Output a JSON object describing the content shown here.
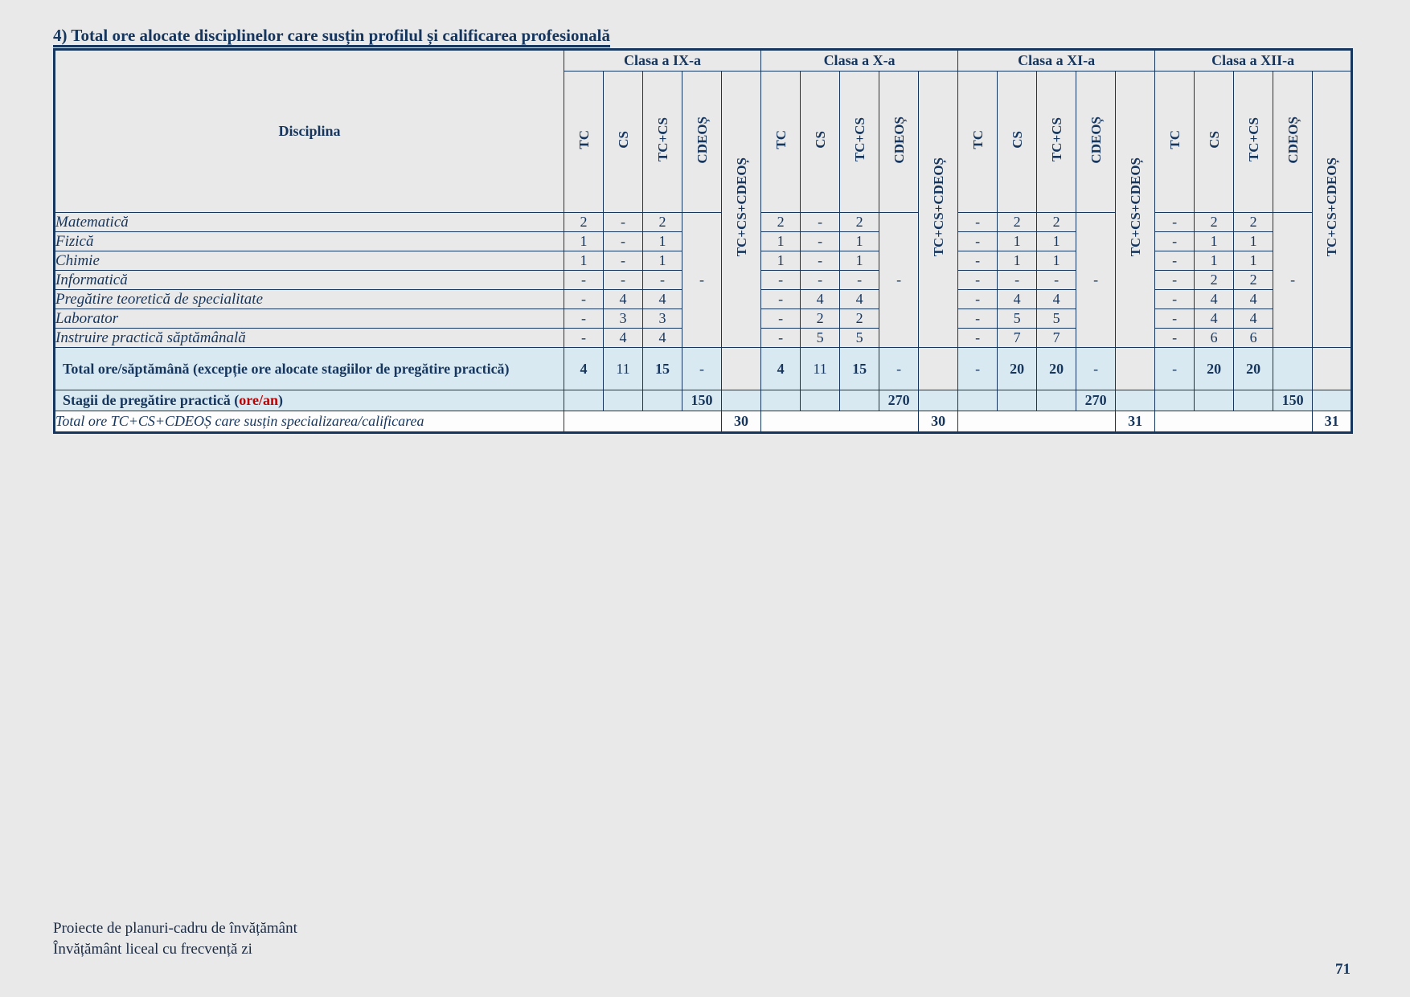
{
  "page": {
    "title": "4) Total ore alocate disciplinelor care susțin profilul și calificarea profesională",
    "footer_line1": "Proiecte de planuri-cadru de învățământ",
    "footer_line2": "Învățământ liceal cu frecvență zi",
    "page_number": "71"
  },
  "colors": {
    "navy": "#17365d",
    "red_accent": "#c00000",
    "summary_row_blue": "#d8e9f2",
    "page_background": "#e9e9e9",
    "final_row_white": "#fdfdfd"
  },
  "table": {
    "disciplina_header": "Disciplina",
    "class_headers": [
      "Clasa a IX-a",
      "Clasa a X-a",
      "Clasa a XI-a",
      "Clasa a XII-a"
    ],
    "sub_headers": [
      "TC",
      "CS",
      "TC+CS",
      "CDEOȘ",
      "TC+CS+CDEOȘ"
    ],
    "cdeos_merged_value": "-",
    "disciplines": [
      {
        "label": "Matematică",
        "values": [
          [
            "2",
            "-",
            "2"
          ],
          [
            "2",
            "-",
            "2"
          ],
          [
            "-",
            "2",
            "2"
          ],
          [
            "-",
            "2",
            "2"
          ]
        ]
      },
      {
        "label": "Fizică",
        "values": [
          [
            "1",
            "-",
            "1"
          ],
          [
            "1",
            "-",
            "1"
          ],
          [
            "-",
            "1",
            "1"
          ],
          [
            "-",
            "1",
            "1"
          ]
        ]
      },
      {
        "label": "Chimie",
        "values": [
          [
            "1",
            "-",
            "1"
          ],
          [
            "1",
            "-",
            "1"
          ],
          [
            "-",
            "1",
            "1"
          ],
          [
            "-",
            "1",
            "1"
          ]
        ]
      },
      {
        "label": "Informatică",
        "values": [
          [
            "-",
            "-",
            "-"
          ],
          [
            "-",
            "-",
            "-"
          ],
          [
            "-",
            "-",
            "-"
          ],
          [
            "-",
            "2",
            "2"
          ]
        ]
      },
      {
        "label": "Pregătire teoretică de specialitate",
        "values": [
          [
            "-",
            "4",
            "4"
          ],
          [
            "-",
            "4",
            "4"
          ],
          [
            "-",
            "4",
            "4"
          ],
          [
            "-",
            "4",
            "4"
          ]
        ]
      },
      {
        "label": "Laborator",
        "values": [
          [
            "-",
            "3",
            "3"
          ],
          [
            "-",
            "2",
            "2"
          ],
          [
            "-",
            "5",
            "5"
          ],
          [
            "-",
            "4",
            "4"
          ]
        ]
      },
      {
        "label": "Instruire practică săptămânală",
        "values": [
          [
            "-",
            "4",
            "4"
          ],
          [
            "-",
            "5",
            "5"
          ],
          [
            "-",
            "7",
            "7"
          ],
          [
            "-",
            "6",
            "6"
          ]
        ]
      }
    ],
    "total_row": {
      "label": "Total ore/săptămână (excepție ore alocate stagiilor de pregătire practică)",
      "values": [
        [
          "4",
          "11",
          "15",
          "-"
        ],
        [
          "4",
          "11",
          "15",
          "-"
        ],
        [
          "-",
          "20",
          "20",
          "-"
        ],
        [
          "-",
          "20",
          "20",
          ""
        ]
      ]
    },
    "stagii_row": {
      "label_prefix": "Stagii de pregătire practică (",
      "label_red": "ore/an",
      "label_suffix": ")",
      "values": [
        "150",
        "270",
        "270",
        "150"
      ]
    },
    "final_row": {
      "label": "Total ore TC+CS+CDEOȘ care susțin specializarea/calificarea",
      "values": [
        "30",
        "30",
        "31",
        "31"
      ]
    }
  }
}
